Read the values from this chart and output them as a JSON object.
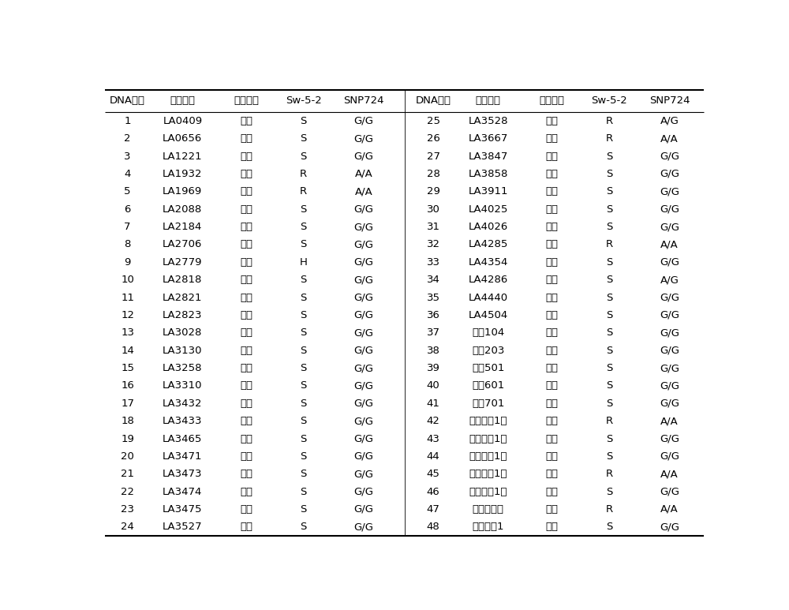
{
  "headers": [
    "DNA编号",
    "样品编号",
    "田间表型",
    "Sw-5-2",
    "SNP724"
  ],
  "left_data": [
    [
      "1",
      "LA0409",
      "感病",
      "S",
      "G/G"
    ],
    [
      "2",
      "LA0656",
      "感病",
      "S",
      "G/G"
    ],
    [
      "3",
      "LA1221",
      "感病",
      "S",
      "G/G"
    ],
    [
      "4",
      "LA1932",
      "抗病",
      "R",
      "A/A"
    ],
    [
      "5",
      "LA1969",
      "抗病",
      "R",
      "A/A"
    ],
    [
      "6",
      "LA2088",
      "感病",
      "S",
      "G/G"
    ],
    [
      "7",
      "LA2184",
      "感病",
      "S",
      "G/G"
    ],
    [
      "8",
      "LA2706",
      "感病",
      "S",
      "G/G"
    ],
    [
      "9",
      "LA2779",
      "抗病",
      "H",
      "G/G"
    ],
    [
      "10",
      "LA2818",
      "感病",
      "S",
      "G/G"
    ],
    [
      "11",
      "LA2821",
      "感病",
      "S",
      "G/G"
    ],
    [
      "12",
      "LA2823",
      "感病",
      "S",
      "G/G"
    ],
    [
      "13",
      "LA3028",
      "感病",
      "S",
      "G/G"
    ],
    [
      "14",
      "LA3130",
      "感病",
      "S",
      "G/G"
    ],
    [
      "15",
      "LA3258",
      "感病",
      "S",
      "G/G"
    ],
    [
      "16",
      "LA3310",
      "感病",
      "S",
      "G/G"
    ],
    [
      "17",
      "LA3432",
      "感病",
      "S",
      "G/G"
    ],
    [
      "18",
      "LA3433",
      "感病",
      "S",
      "G/G"
    ],
    [
      "19",
      "LA3465",
      "感病",
      "S",
      "G/G"
    ],
    [
      "20",
      "LA3471",
      "感病",
      "S",
      "G/G"
    ],
    [
      "21",
      "LA3473",
      "感病",
      "S",
      "G/G"
    ],
    [
      "22",
      "LA3474",
      "感病",
      "S",
      "G/G"
    ],
    [
      "23",
      "LA3475",
      "感病",
      "S",
      "G/G"
    ],
    [
      "24",
      "LA3527",
      "感病",
      "S",
      "G/G"
    ]
  ],
  "right_data": [
    [
      "25",
      "LA3528",
      "抗病",
      "R",
      "A/G"
    ],
    [
      "26",
      "LA3667",
      "抗病",
      "R",
      "A/A"
    ],
    [
      "27",
      "LA3847",
      "感病",
      "S",
      "G/G"
    ],
    [
      "28",
      "LA3858",
      "感病",
      "S",
      "G/G"
    ],
    [
      "29",
      "LA3911",
      "感病",
      "S",
      "G/G"
    ],
    [
      "30",
      "LA4025",
      "感病",
      "S",
      "G/G"
    ],
    [
      "31",
      "LA4026",
      "感病",
      "S",
      "G/G"
    ],
    [
      "32",
      "LA4285",
      "抗病",
      "R",
      "A/A"
    ],
    [
      "33",
      "LA4354",
      "感病",
      "S",
      "G/G"
    ],
    [
      "34",
      "LA4286",
      "感病",
      "S",
      "A/G"
    ],
    [
      "35",
      "LA4440",
      "感病",
      "S",
      "G/G"
    ],
    [
      "36",
      "LA4504",
      "感病",
      "S",
      "G/G"
    ],
    [
      "37",
      "京番104",
      "感病",
      "S",
      "G/G"
    ],
    [
      "38",
      "京番203",
      "感病",
      "S",
      "G/G"
    ],
    [
      "39",
      "京番501",
      "感病",
      "S",
      "G/G"
    ],
    [
      "40",
      "京番601",
      "感病",
      "S",
      "G/G"
    ],
    [
      "41",
      "京番701",
      "感病",
      "S",
      "G/G"
    ],
    [
      "42",
      "京番彩星1号",
      "抗病",
      "R",
      "A/A"
    ],
    [
      "43",
      "京番红罗1号",
      "感病",
      "S",
      "G/G"
    ],
    [
      "44",
      "京番黄星1号",
      "感病",
      "S",
      "G/G"
    ],
    [
      "45",
      "京番绿星1号",
      "抗病",
      "R",
      "A/A"
    ],
    [
      "46",
      "京番紫星1号",
      "感病",
      "S",
      "G/G"
    ],
    [
      "47",
      "京番相思豆",
      "抗病",
      "R",
      "A/A"
    ],
    [
      "48",
      "京番中彩1",
      "感病",
      "S",
      "G/G"
    ]
  ],
  "bold_phenotype": "抗病",
  "bg_color": "#ffffff",
  "text_color": "#000000",
  "line_color": "#000000",
  "font_size": 9.5,
  "header_font_size": 9.5,
  "figsize": [
    10.0,
    7.73
  ],
  "dpi": 100
}
